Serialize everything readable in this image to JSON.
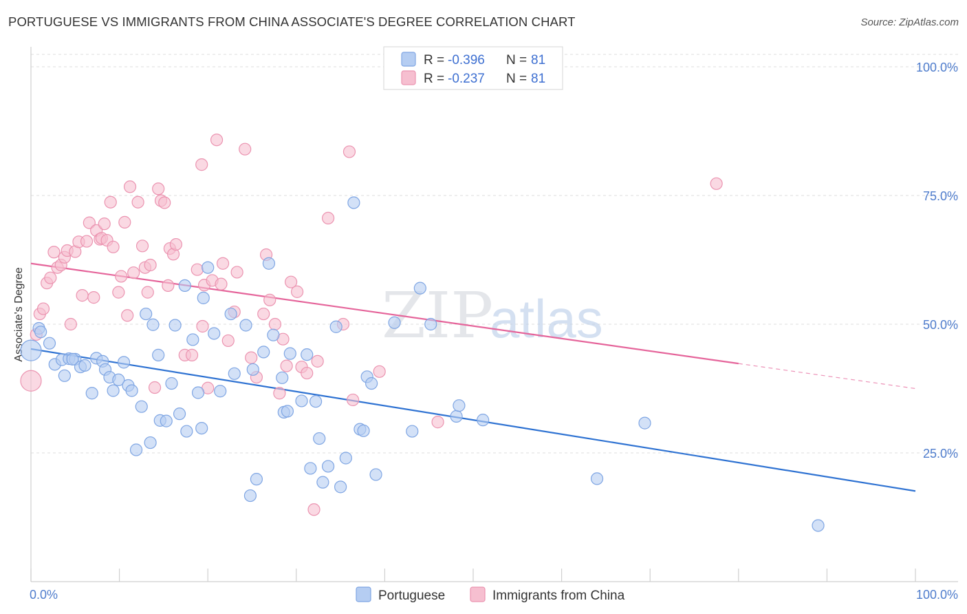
{
  "title": "PORTUGUESE VS IMMIGRANTS FROM CHINA ASSOCIATE'S DEGREE CORRELATION CHART",
  "source": "Source: ZipAtlas.com",
  "watermark": {
    "zip": "ZIP",
    "atlas": "atlas"
  },
  "colors": {
    "blue": "#3b7ad8",
    "blue_fill": "#b5cdf2",
    "pink": "#e56a95",
    "pink_fill": "#f6bfd0",
    "axis_text": "#4e7ccc",
    "grid": "#d8d8d8"
  },
  "legend": {
    "rows": [
      {
        "r_label": "R = ",
        "r_value": "-0.396",
        "n_label": "N = ",
        "n_value": "81"
      },
      {
        "r_label": "R = ",
        "r_value": "-0.237",
        "n_label": "N = ",
        "n_value": "81"
      }
    ]
  },
  "bottom_legend": [
    "Portuguese",
    "Immigrants from China"
  ],
  "chart_data": {
    "type": "scatter",
    "title": "PORTUGUESE VS IMMIGRANTS FROM CHINA ASSOCIATE'S DEGREE CORRELATION CHART",
    "xlabel": "",
    "ylabel": "Associate's Degree",
    "xlim": [
      0,
      100
    ],
    "ylim": [
      0,
      100
    ],
    "x_tick_labels": [
      "0.0%",
      "100.0%"
    ],
    "y_tick_labels": [
      "100.0%",
      "75.0%",
      "50.0%",
      "25.0%"
    ],
    "y_tick_values": [
      100,
      75,
      50,
      25
    ],
    "grid": true,
    "legend_position": "top-center",
    "series": [
      {
        "name": "Portuguese",
        "color": "#3b7ad8",
        "r": -0.396,
        "n": 81,
        "trend": {
          "x": [
            0,
            100
          ],
          "y": [
            45.2,
            17.6
          ],
          "dashed_from": null
        },
        "points": [
          [
            0,
            44.9
          ],
          [
            0.9,
            49.2
          ],
          [
            1.1,
            48.5
          ],
          [
            2.1,
            46.3
          ],
          [
            2.7,
            42.2
          ],
          [
            3.5,
            43.1
          ],
          [
            3.8,
            40.0
          ],
          [
            4.3,
            43.3
          ],
          [
            5.0,
            43.2
          ],
          [
            5.6,
            41.7
          ],
          [
            6.1,
            42.0
          ],
          [
            6.9,
            36.6
          ],
          [
            7.4,
            43.4
          ],
          [
            8.1,
            42.8
          ],
          [
            8.4,
            41.2
          ],
          [
            8.9,
            39.7
          ],
          [
            9.3,
            37.1
          ],
          [
            9.9,
            39.2
          ],
          [
            10.5,
            42.6
          ],
          [
            11.0,
            38.1
          ],
          [
            11.4,
            37.1
          ],
          [
            11.9,
            25.6
          ],
          [
            12.5,
            34.0
          ],
          [
            13.0,
            52.0
          ],
          [
            13.5,
            27.0
          ],
          [
            13.8,
            49.9
          ],
          [
            14.4,
            44.0
          ],
          [
            14.6,
            31.3
          ],
          [
            15.3,
            31.2
          ],
          [
            15.9,
            38.5
          ],
          [
            16.3,
            49.8
          ],
          [
            16.8,
            32.6
          ],
          [
            17.4,
            57.5
          ],
          [
            17.6,
            29.2
          ],
          [
            18.3,
            47.0
          ],
          [
            18.9,
            36.7
          ],
          [
            19.3,
            29.8
          ],
          [
            19.5,
            55.1
          ],
          [
            20.0,
            61.0
          ],
          [
            20.7,
            48.2
          ],
          [
            21.4,
            37.0
          ],
          [
            22.6,
            52.0
          ],
          [
            23.0,
            40.4
          ],
          [
            24.3,
            49.8
          ],
          [
            24.8,
            16.7
          ],
          [
            25.1,
            41.2
          ],
          [
            25.5,
            19.9
          ],
          [
            26.3,
            44.6
          ],
          [
            26.9,
            61.8
          ],
          [
            27.4,
            47.9
          ],
          [
            28.4,
            39.6
          ],
          [
            28.6,
            32.9
          ],
          [
            29.0,
            33.1
          ],
          [
            29.3,
            44.3
          ],
          [
            30.6,
            35.1
          ],
          [
            31.2,
            44.1
          ],
          [
            31.6,
            22.0
          ],
          [
            32.2,
            35.0
          ],
          [
            32.6,
            27.8
          ],
          [
            33.0,
            19.3
          ],
          [
            33.6,
            22.4
          ],
          [
            34.5,
            49.5
          ],
          [
            35.0,
            18.4
          ],
          [
            35.6,
            24.0
          ],
          [
            37.2,
            29.6
          ],
          [
            36.5,
            73.6
          ],
          [
            37.6,
            29.3
          ],
          [
            38.0,
            39.8
          ],
          [
            38.5,
            38.5
          ],
          [
            39.0,
            20.8
          ],
          [
            41.1,
            50.3
          ],
          [
            43.1,
            29.2
          ],
          [
            45.2,
            50.0
          ],
          [
            48.1,
            32.1
          ],
          [
            48.4,
            34.2
          ],
          [
            51.1,
            31.4
          ],
          [
            64.0,
            20.0
          ],
          [
            69.4,
            30.8
          ],
          [
            89.0,
            10.9
          ],
          [
            44.0,
            57.0
          ],
          [
            4.7,
            43.2
          ]
        ]
      },
      {
        "name": "Immigrants from China",
        "color": "#e56a95",
        "r": -0.237,
        "n": 81,
        "trend": {
          "x": [
            0,
            100
          ],
          "y": [
            61.8,
            37.5
          ],
          "dashed_from": 80.0
        },
        "points": [
          [
            0,
            39.0
          ],
          [
            0.6,
            48.0
          ],
          [
            1.0,
            52.0
          ],
          [
            1.4,
            53.0
          ],
          [
            1.8,
            58.0
          ],
          [
            2.2,
            59.0
          ],
          [
            2.6,
            64.0
          ],
          [
            3.0,
            61.0
          ],
          [
            3.4,
            61.5
          ],
          [
            3.8,
            63.0
          ],
          [
            4.1,
            64.3
          ],
          [
            4.5,
            50.0
          ],
          [
            5.0,
            64.1
          ],
          [
            5.4,
            66.0
          ],
          [
            5.8,
            55.6
          ],
          [
            6.3,
            66.1
          ],
          [
            6.6,
            69.7
          ],
          [
            7.1,
            55.2
          ],
          [
            7.4,
            68.2
          ],
          [
            7.8,
            66.5
          ],
          [
            8.0,
            66.7
          ],
          [
            8.3,
            69.5
          ],
          [
            8.6,
            66.3
          ],
          [
            9.0,
            73.7
          ],
          [
            9.3,
            65.0
          ],
          [
            9.9,
            56.2
          ],
          [
            10.2,
            59.3
          ],
          [
            10.6,
            69.8
          ],
          [
            10.9,
            51.7
          ],
          [
            11.2,
            76.7
          ],
          [
            11.6,
            60.0
          ],
          [
            12.1,
            73.7
          ],
          [
            12.6,
            65.2
          ],
          [
            12.9,
            61.0
          ],
          [
            13.2,
            56.2
          ],
          [
            13.5,
            61.5
          ],
          [
            14.0,
            37.7
          ],
          [
            14.4,
            76.3
          ],
          [
            14.7,
            74.0
          ],
          [
            15.1,
            73.6
          ],
          [
            15.5,
            57.5
          ],
          [
            15.7,
            64.7
          ],
          [
            16.1,
            63.6
          ],
          [
            16.4,
            65.5
          ],
          [
            17.4,
            44.0
          ],
          [
            18.2,
            44.0
          ],
          [
            18.8,
            60.6
          ],
          [
            19.3,
            81.0
          ],
          [
            19.4,
            49.6
          ],
          [
            19.6,
            57.6
          ],
          [
            20.0,
            37.6
          ],
          [
            20.5,
            58.5
          ],
          [
            21.0,
            85.8
          ],
          [
            21.5,
            57.8
          ],
          [
            21.7,
            61.8
          ],
          [
            22.3,
            46.8
          ],
          [
            23.0,
            52.4
          ],
          [
            23.3,
            60.1
          ],
          [
            24.2,
            84.0
          ],
          [
            24.9,
            43.5
          ],
          [
            25.5,
            39.7
          ],
          [
            26.3,
            52.0
          ],
          [
            26.6,
            63.5
          ],
          [
            27.0,
            54.7
          ],
          [
            27.6,
            50.0
          ],
          [
            28.1,
            36.6
          ],
          [
            28.5,
            47.1
          ],
          [
            28.9,
            41.9
          ],
          [
            29.4,
            58.2
          ],
          [
            30.1,
            56.3
          ],
          [
            30.6,
            41.7
          ],
          [
            31.2,
            40.5
          ],
          [
            32.0,
            14.0
          ],
          [
            32.4,
            42.8
          ],
          [
            33.6,
            70.6
          ],
          [
            35.3,
            50.0
          ],
          [
            36.0,
            83.5
          ],
          [
            36.4,
            35.3
          ],
          [
            39.4,
            40.8
          ],
          [
            46.0,
            31.0
          ],
          [
            77.5,
            77.3
          ]
        ]
      }
    ]
  }
}
